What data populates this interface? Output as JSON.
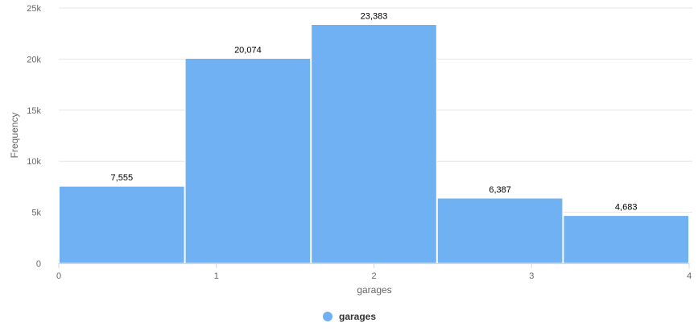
{
  "chart_data": {
    "type": "bar",
    "bin_edges": [
      0,
      0.8,
      1.6,
      2.4,
      3.2,
      4.0
    ],
    "values": [
      7555,
      20074,
      23383,
      6387,
      4683
    ],
    "value_labels": [
      "7,555",
      "20,074",
      "23,383",
      "6,387",
      "4,683"
    ],
    "xlabel": "garages",
    "ylabel": "Frequency",
    "xlim": [
      0,
      4
    ],
    "ylim": [
      0,
      25000
    ],
    "x_ticks": [
      "0",
      "1",
      "2",
      "3",
      "4"
    ],
    "y_ticks": [
      "0",
      "5k",
      "10k",
      "15k",
      "20k",
      "25k"
    ],
    "grid": "horizontal",
    "legend": {
      "position": "bottom-center",
      "entries": [
        "garages"
      ]
    },
    "colors": {
      "bar": "#6fb1f2",
      "grid": "#e6e6e6",
      "axis": "#ccd6eb"
    }
  }
}
